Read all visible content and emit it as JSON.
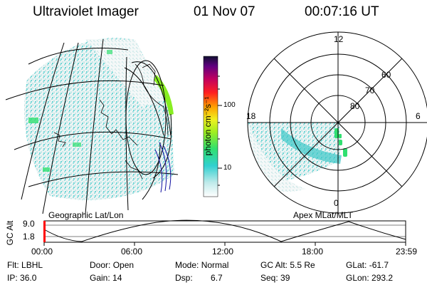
{
  "header": {
    "instrument": "Ultraviolet Imager",
    "date": "01 Nov 07",
    "time": "00:07:16 UT"
  },
  "map_left": {
    "label": "Geographic Lat/Lon"
  },
  "map_right": {
    "label": "Apex MLat/MLT",
    "mlt_labels": {
      "top": "12",
      "left": "18",
      "right": "6",
      "bottom": "0"
    },
    "lat_labels": [
      "60",
      "70",
      "80"
    ]
  },
  "colorbar": {
    "unit": "photon cm⁻²s⁻¹",
    "ticks": [
      "100",
      "10"
    ]
  },
  "altitude_plot": {
    "ylabel": "GC Alt",
    "yticks": [
      "9.0",
      "1.8"
    ],
    "xticks": [
      "00:00",
      "06:00",
      "12:00",
      "18:00",
      "23:59"
    ]
  },
  "info": {
    "row1": [
      {
        "k": "Flt:",
        "v": "LBHL"
      },
      {
        "k": "Door:",
        "v": "Open"
      },
      {
        "k": "Mode:",
        "v": "Normal"
      },
      {
        "k": "GC Alt:",
        "v": "5.5 Re"
      },
      {
        "k": "GLat:",
        "v": "-61.7"
      }
    ],
    "row2": [
      {
        "k": "IP:",
        "v": "36.0"
      },
      {
        "k": "Gain:",
        "v": "14"
      },
      {
        "k": "Dsp:",
        "v": "6.7"
      },
      {
        "k": "Seq:",
        "v": "39"
      },
      {
        "k": "GLon:",
        "v": "293.2"
      }
    ]
  },
  "colors": {
    "cyan": "#3cc8c8",
    "green": "#30e070",
    "lime": "#88ee22",
    "cursor": "#ff0000"
  }
}
